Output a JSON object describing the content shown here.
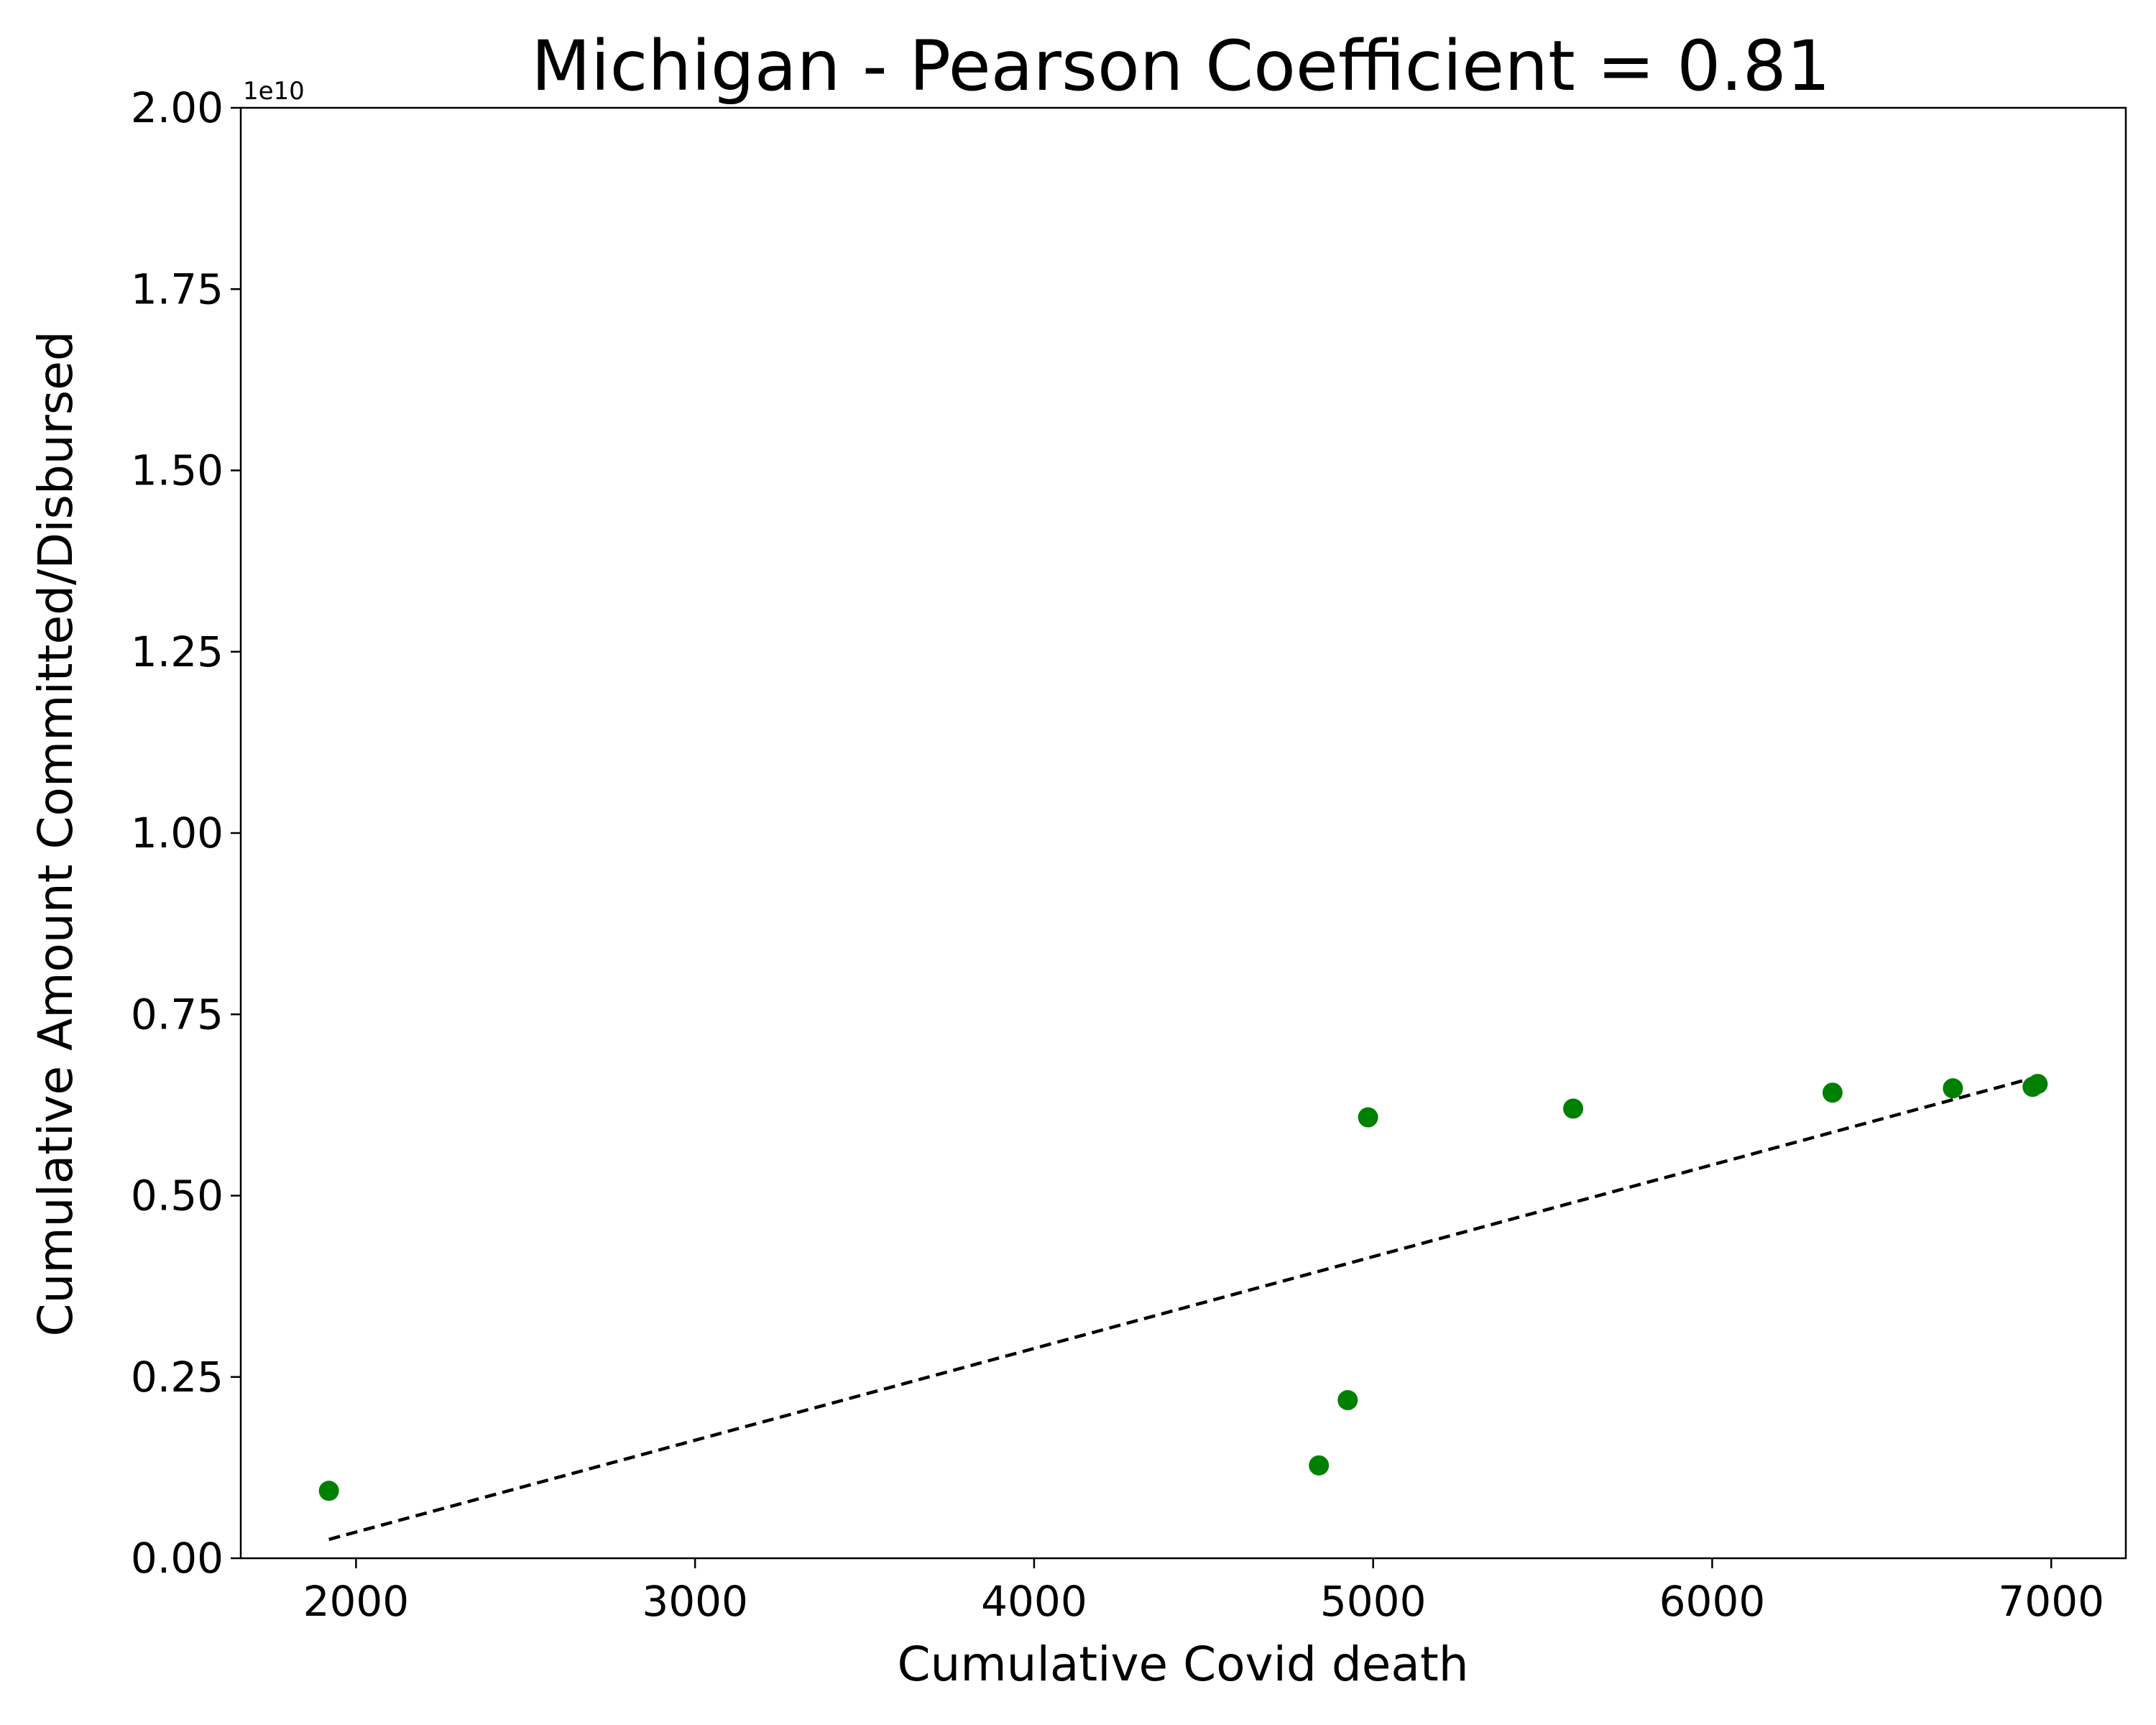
{
  "chart_data": {
    "type": "scatter",
    "title": "Michigan - Pearson Coefficient = 0.81",
    "xlabel": "Cumulative Covid death",
    "ylabel": "Cumulative Amount Committed/Disbursed",
    "y_offset_label": "1e10",
    "xlim": [
      1660,
      7220
    ],
    "ylim": [
      0,
      2.0
    ],
    "x_ticks": [
      2000,
      3000,
      4000,
      5000,
      6000,
      7000
    ],
    "x_tick_labels": [
      "2000",
      "3000",
      "4000",
      "5000",
      "6000",
      "7000"
    ],
    "y_ticks": [
      0,
      0.25,
      0.5,
      0.75,
      1.0,
      1.25,
      1.5,
      1.75,
      2.0
    ],
    "y_tick_labels": [
      "0.00",
      "0.25",
      "0.50",
      "0.75",
      "1.00",
      "1.25",
      "1.50",
      "1.75",
      "2.00"
    ],
    "grid": false,
    "points": {
      "color": "#008000",
      "x": [
        1920,
        4840,
        4925,
        4985,
        5590,
        6355,
        6710,
        6945,
        6960
      ],
      "y": [
        0.093,
        0.128,
        0.218,
        0.608,
        0.62,
        0.642,
        0.648,
        0.65,
        0.654
      ]
    },
    "trendline": {
      "color": "#000000",
      "style": "dashed",
      "x": [
        1920,
        6960
      ],
      "y": [
        0.026,
        0.664
      ]
    }
  }
}
